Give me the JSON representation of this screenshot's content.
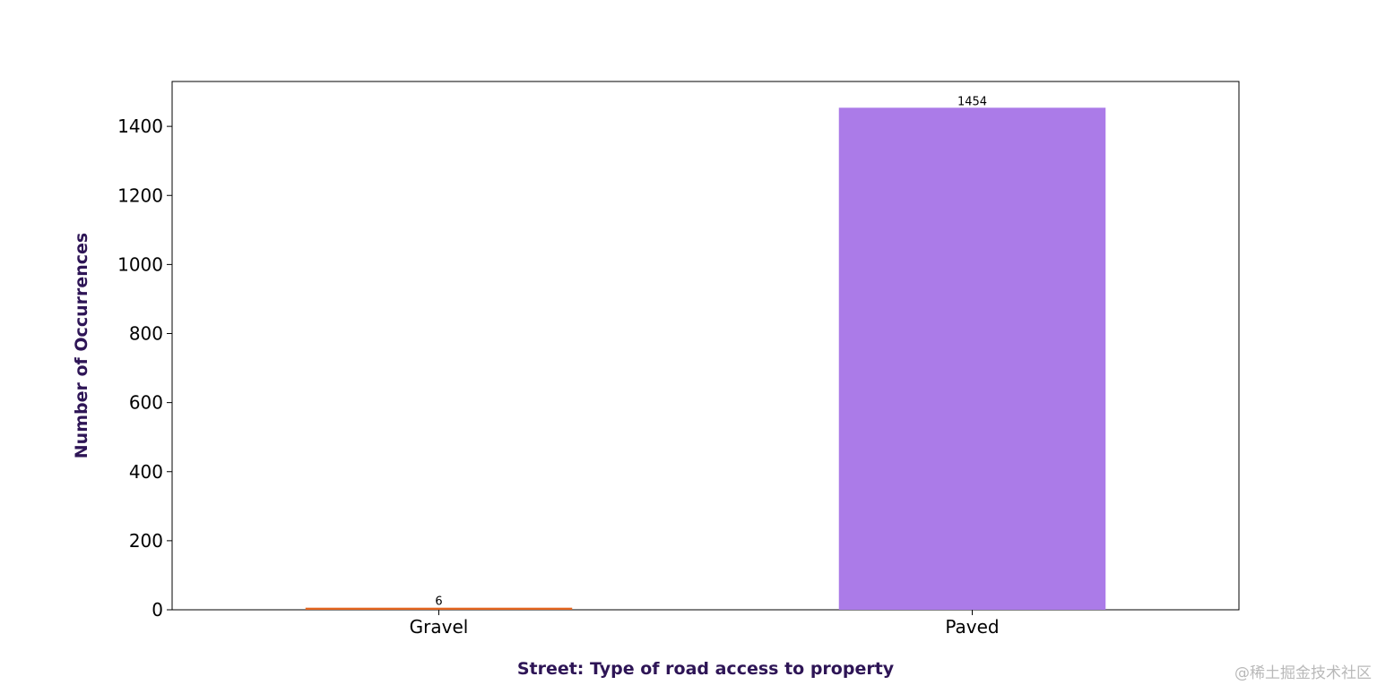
{
  "chart_data": {
    "type": "bar",
    "categories": [
      "Gravel",
      "Paved"
    ],
    "values": [
      6,
      1454
    ],
    "data_labels": [
      "6",
      "1454"
    ],
    "colors": [
      "#e3641f",
      "#ab7be8"
    ],
    "xlabel": "Street: Type of road access to property",
    "ylabel": "Number of Occurrences",
    "ylim": [
      0,
      1530
    ],
    "yticks": [
      0,
      200,
      400,
      600,
      800,
      1000,
      1200,
      1400
    ],
    "grid": false,
    "label_color": "#2e1556"
  },
  "watermark": "@稀土掘金技术社区"
}
